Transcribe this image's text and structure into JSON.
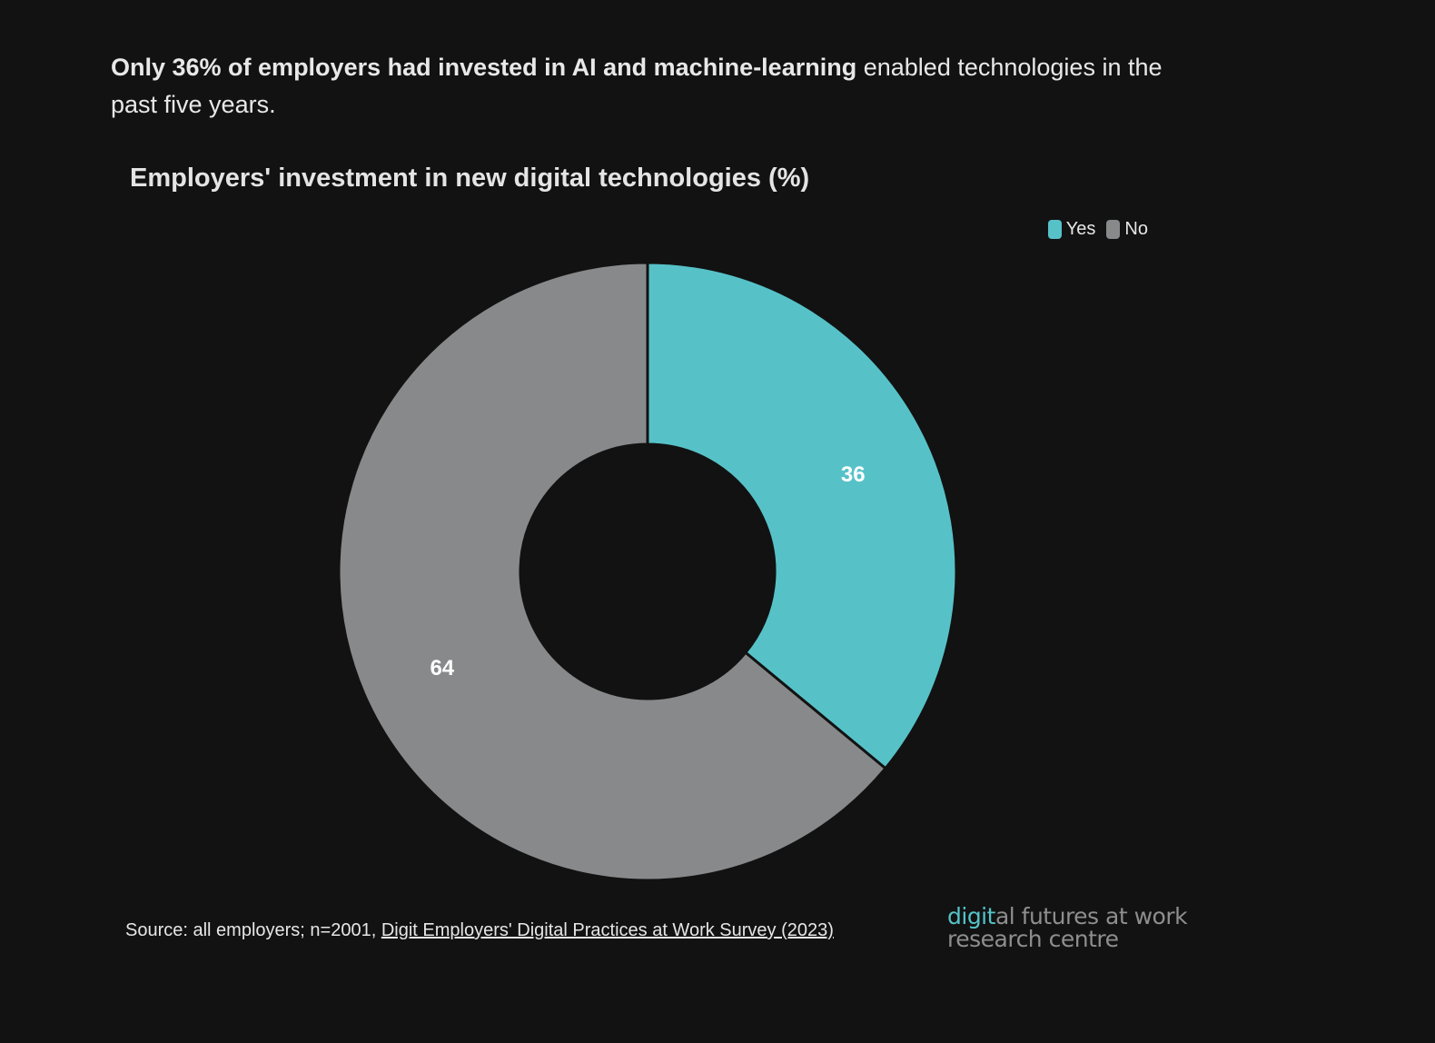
{
  "headline": {
    "bold": "Only 36% of employers had invested in AI and machine-learning",
    "rest": "enabled technologies in the past five years."
  },
  "chart_data": {
    "type": "pie",
    "title": "Employers' investment in new digital technologies (%)",
    "donut": true,
    "legend_position": "top-right",
    "categories": [
      "Yes",
      "No"
    ],
    "values": [
      36,
      64
    ],
    "colors": [
      "#56c2c8",
      "#88898b"
    ]
  },
  "legend": [
    {
      "label": "Yes",
      "color": "#56c2c8"
    },
    {
      "label": "No",
      "color": "#88898b"
    }
  ],
  "source": {
    "prefix": "Source: all employers; n=2001,",
    "link_text": "Digit Employers' Digital Practices at Work Survey (2023)"
  },
  "logo": {
    "accent": "digit",
    "line1_rest": "al futures at work",
    "line2": "research centre"
  }
}
